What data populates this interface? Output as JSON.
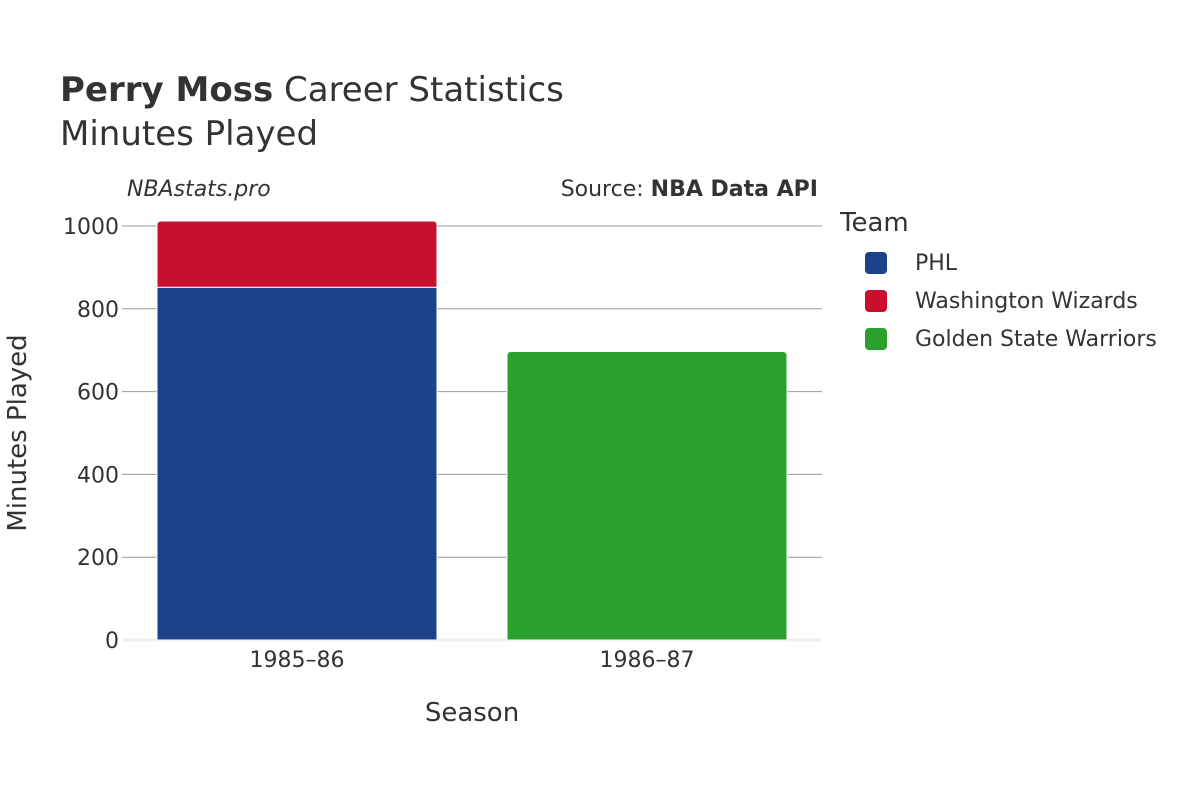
{
  "header": {
    "player_name": "Perry Moss",
    "title_rest": " Career Statistics",
    "subtitle": "Minutes Played"
  },
  "watermark": "NBAstats.pro",
  "source": {
    "prefix": "Source: ",
    "name": "NBA Data API"
  },
  "legend": {
    "title": "Team"
  },
  "chart_data": {
    "type": "bar",
    "stacked": true,
    "categories": [
      "1985–86",
      "1986–87"
    ],
    "series": [
      {
        "name": "PHL",
        "color": "#1c428a",
        "values": [
          852,
          0
        ]
      },
      {
        "name": "Washington Wizards",
        "color": "#c8102e",
        "values": [
          160,
          0
        ]
      },
      {
        "name": "Golden State Warriors",
        "color": "#2ca02c",
        "values": [
          0,
          697
        ]
      }
    ],
    "xlabel": "Season",
    "ylabel": "Minutes Played",
    "ylim": [
      0,
      1000
    ],
    "yticks": [
      0,
      200,
      400,
      600,
      800,
      1000
    ],
    "grid": true,
    "legend_position": "right"
  }
}
